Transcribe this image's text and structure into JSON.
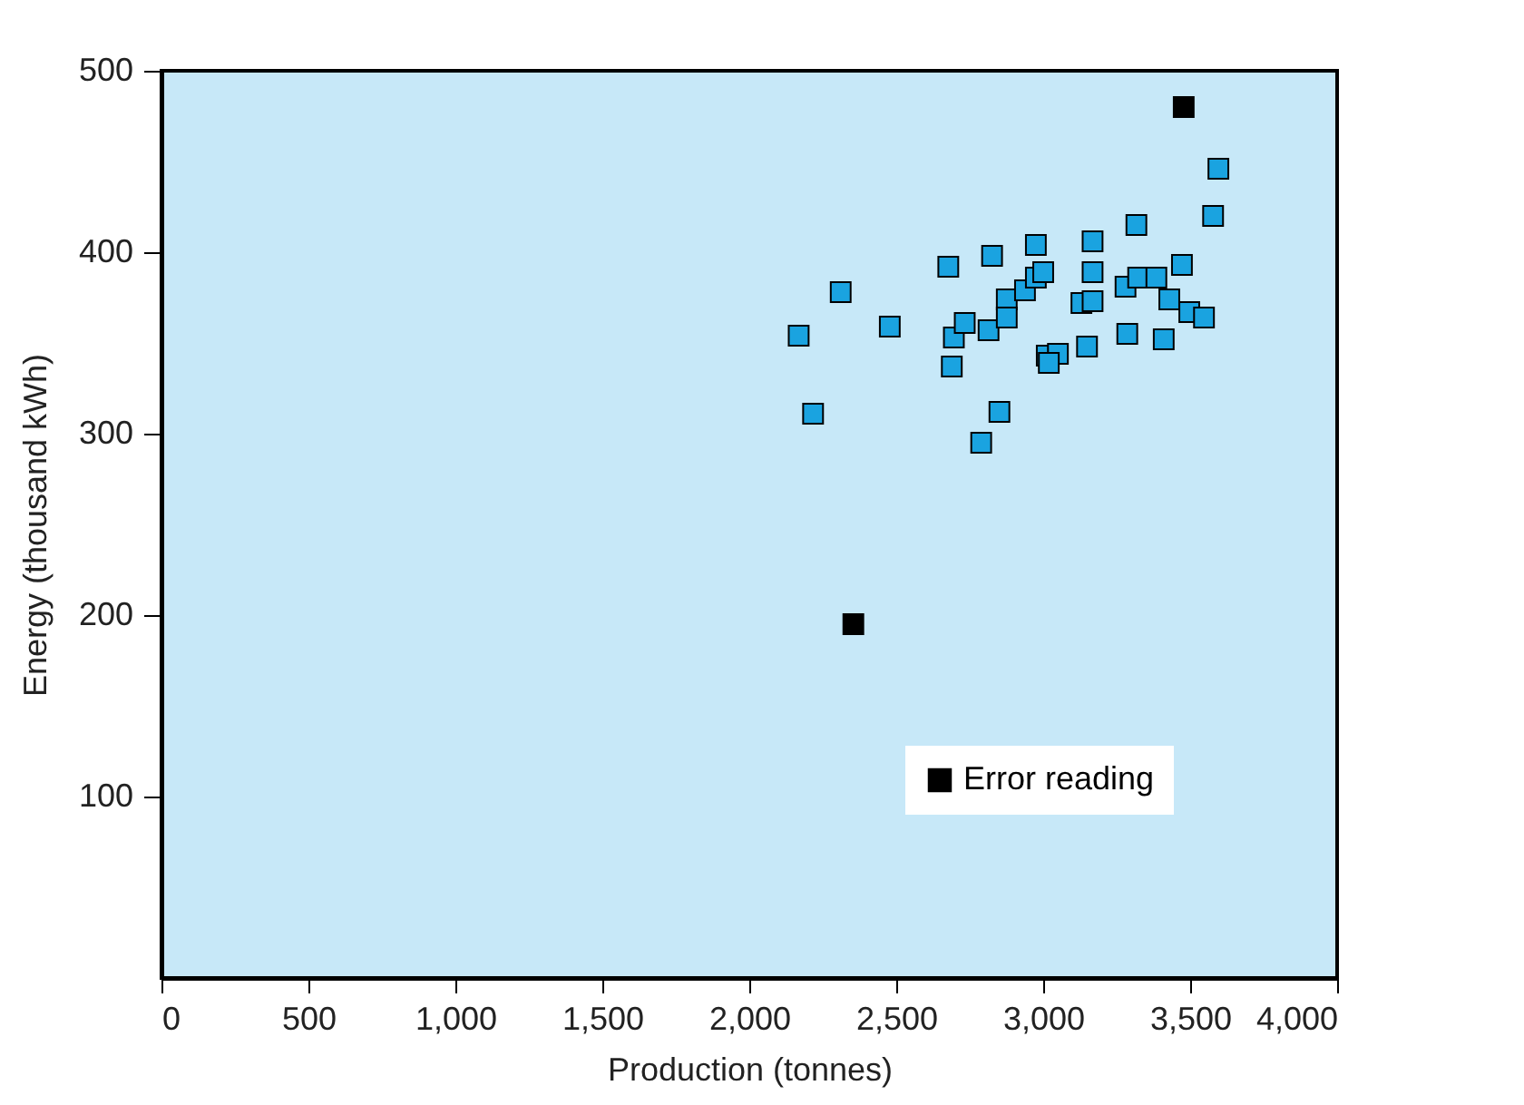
{
  "chart_data": {
    "type": "scatter",
    "xlabel": "Production (tonnes)",
    "ylabel": "Energy (thousand kWh)",
    "xlim": [
      0,
      4000
    ],
    "xticks": [
      0,
      {
        "value": 500,
        "label": "500"
      },
      {
        "value": 1000,
        "label": "1,000"
      },
      {
        "value": 1500,
        "label": "1,500"
      },
      {
        "value": 2000,
        "label": "2,000"
      },
      {
        "value": 2500,
        "label": "2,500"
      },
      {
        "value": 3000,
        "label": "3,000"
      },
      {
        "value": 3500,
        "label": "3,500"
      },
      {
        "value": 4000,
        "label": "4,000"
      }
    ],
    "ylim": [
      0,
      500
    ],
    "yticks": [
      100,
      200,
      300,
      400,
      500
    ],
    "grid": false,
    "marker": "square",
    "legend": "bottom right",
    "series": [
      {
        "color": "#1aa3e0",
        "x": [
          2168,
          2217,
          2311,
          2478,
          2677,
          2696,
          2689,
          2733,
          2826,
          2814,
          2789,
          2851,
          2876,
          2876,
          2938,
          2975,
          2975,
          3000,
          3012,
          3050,
          3019,
          3130,
          3149,
          3168,
          3168,
          3168,
          3280,
          3286,
          3317,
          3323,
          3385,
          3410,
          3429,
          3472,
          3497,
          3547,
          3578,
          3596
        ],
        "values": [
          354,
          311,
          378,
          359,
          392,
          353,
          337,
          361,
          398,
          357,
          295,
          312,
          374,
          364,
          379,
          404,
          386,
          389,
          343,
          344,
          339,
          372,
          348,
          406,
          389,
          373,
          381,
          355,
          415,
          386,
          386,
          352,
          374,
          393,
          367,
          364,
          420,
          446
        ]
      },
      {
        "name": "Error reading",
        "color": "#000000",
        "x": [
          3478,
          2354
        ],
        "values": [
          480,
          195
        ]
      }
    ]
  }
}
